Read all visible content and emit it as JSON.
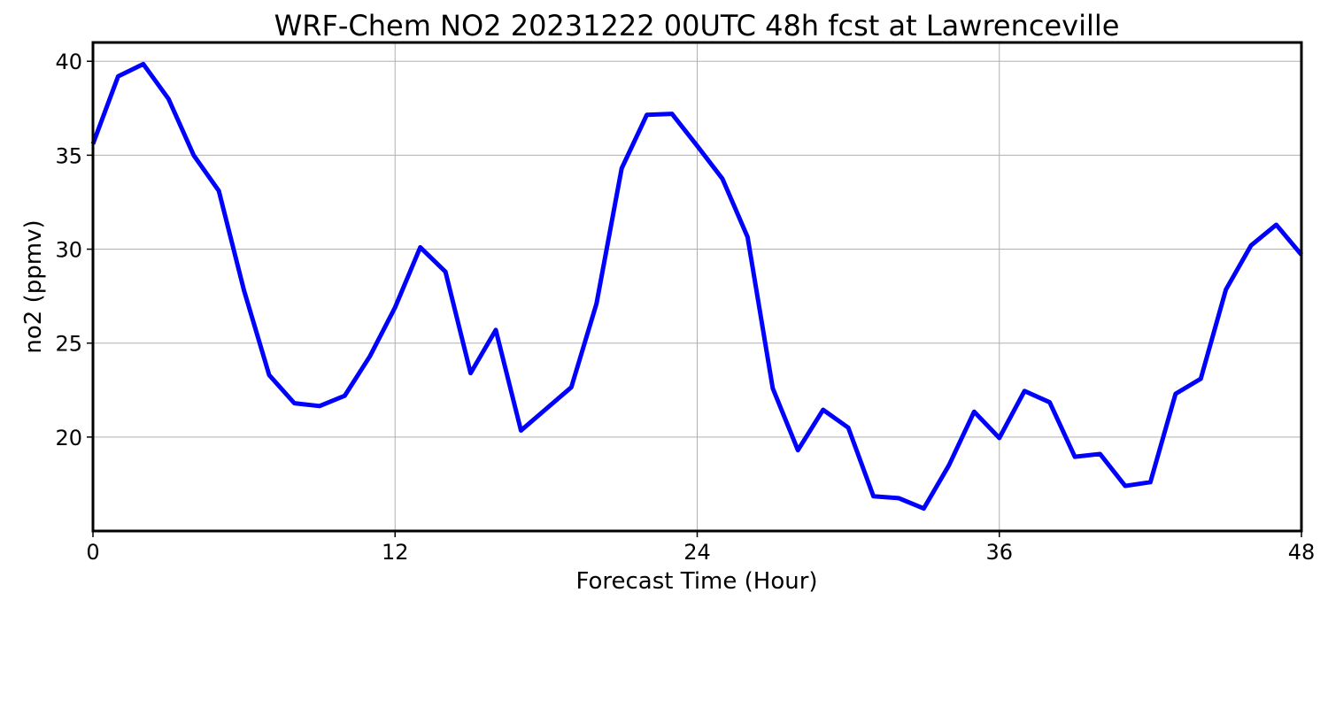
{
  "chart_data": {
    "type": "line",
    "title": "WRF-Chem NO2  20231222 00UTC 48h fcst at Lawrenceville",
    "xlabel": "Forecast Time (Hour)",
    "ylabel": "no2  (ppmv)",
    "xlim": [
      0,
      48
    ],
    "ylim": [
      15,
      41
    ],
    "xticks": [
      0,
      12,
      24,
      36,
      48
    ],
    "yticks": [
      20,
      25,
      30,
      35,
      40
    ],
    "grid": true,
    "line_color": "#0000ff",
    "series": [
      {
        "x": [
          0,
          1,
          2,
          3,
          4,
          5,
          6,
          7,
          8,
          9,
          10,
          11,
          12,
          13,
          14,
          15,
          16,
          17,
          18,
          19,
          20,
          21,
          22,
          23,
          24,
          25,
          26,
          27,
          28,
          29,
          30,
          31,
          32,
          33,
          34,
          35,
          36,
          37,
          38,
          39,
          40,
          41,
          42,
          43,
          44,
          45,
          46,
          47,
          48
        ],
        "values": [
          35.6,
          39.2,
          39.85,
          38.0,
          35.0,
          33.1,
          27.8,
          23.3,
          21.8,
          21.65,
          22.2,
          24.3,
          26.9,
          30.1,
          28.8,
          23.4,
          25.7,
          20.35,
          21.5,
          22.65,
          27.1,
          34.3,
          37.15,
          37.2,
          35.5,
          33.75,
          30.65,
          22.6,
          19.3,
          21.45,
          20.5,
          16.85,
          16.75,
          16.2,
          18.5,
          21.35,
          19.95,
          22.45,
          21.85,
          18.95,
          19.1,
          17.4,
          17.6,
          22.3,
          23.1,
          27.85,
          30.2,
          31.3,
          29.7
        ]
      }
    ]
  }
}
